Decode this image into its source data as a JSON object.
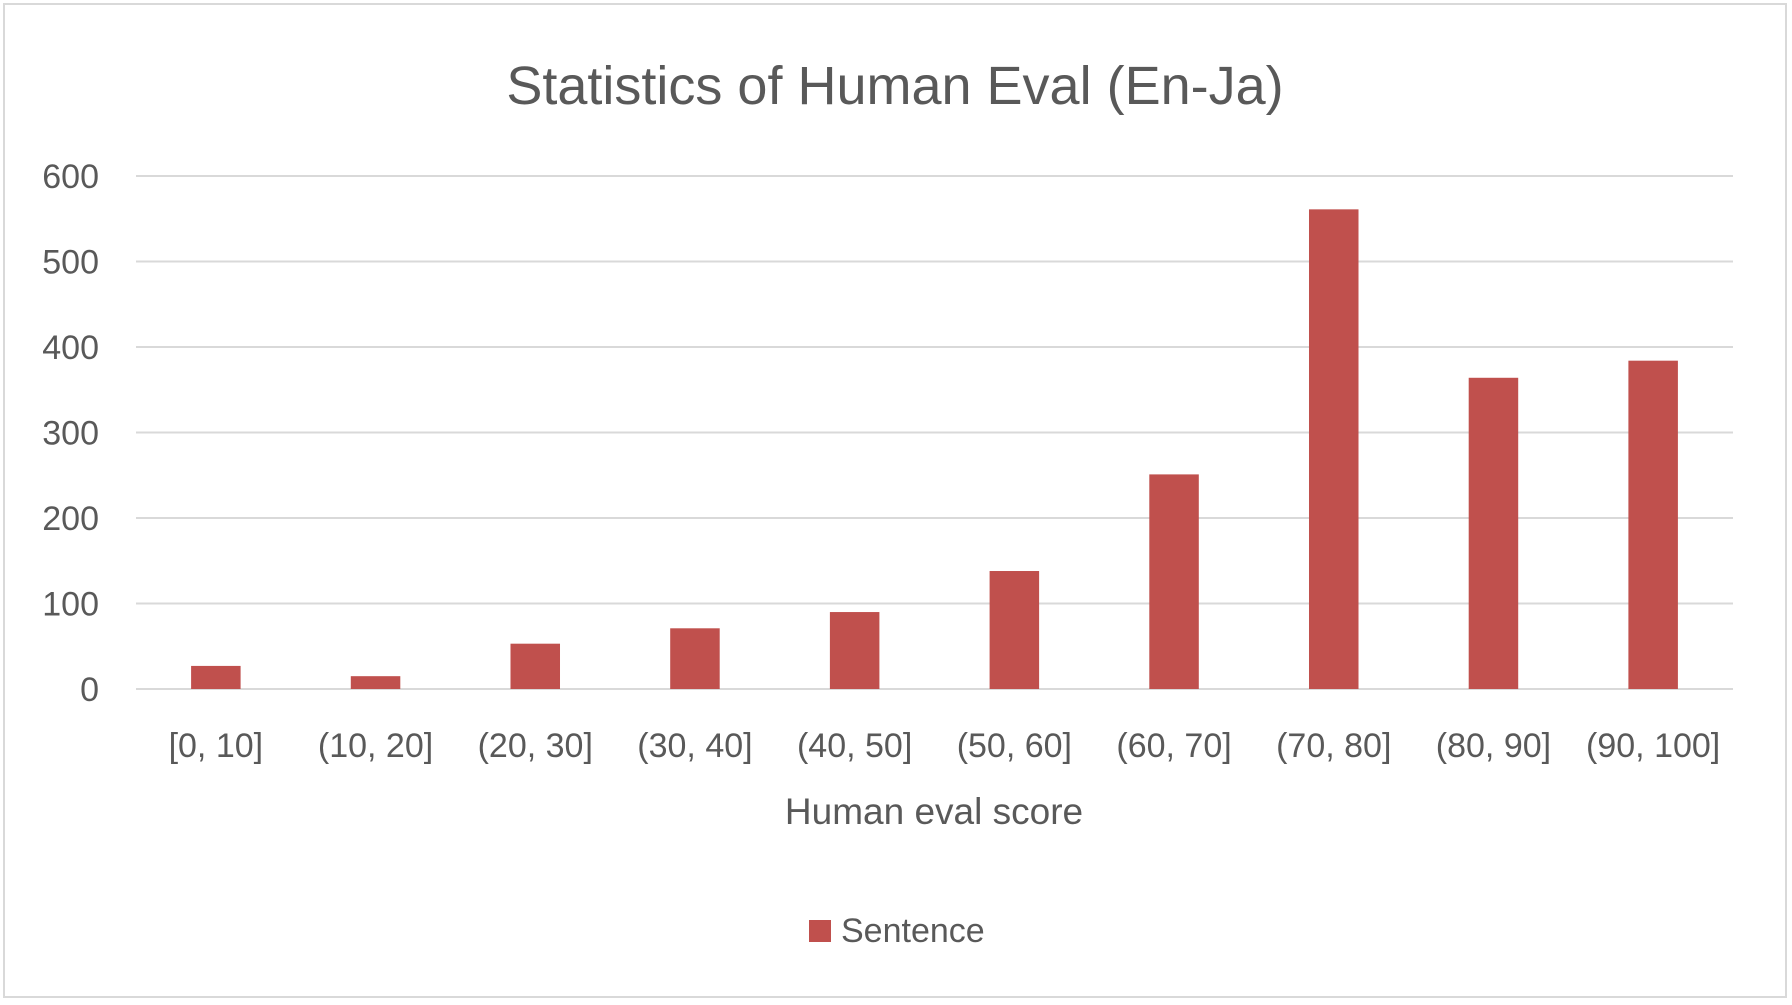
{
  "chart_data": {
    "type": "bar",
    "title": "Statistics of Human Eval (En-Ja)",
    "xlabel": "Human eval score",
    "ylabel": "",
    "categories": [
      "[0, 10]",
      "(10, 20]",
      "(20, 30]",
      "(30, 40]",
      "(40, 50]",
      "(50, 60]",
      "(60, 70]",
      "(70, 80]",
      "(80, 90]",
      "(90, 100]"
    ],
    "series": [
      {
        "name": "Sentence",
        "values": [
          27,
          15,
          53,
          71,
          90,
          138,
          251,
          561,
          364,
          384
        ]
      }
    ],
    "ylim": [
      0,
      600
    ],
    "yticks": [
      0,
      100,
      200,
      300,
      400,
      500,
      600
    ],
    "grid": true,
    "legend_position": "bottom",
    "colors": {
      "bar": "#c0504d",
      "grid": "#d9d9d9",
      "text": "#595959",
      "title": "#595959"
    }
  }
}
